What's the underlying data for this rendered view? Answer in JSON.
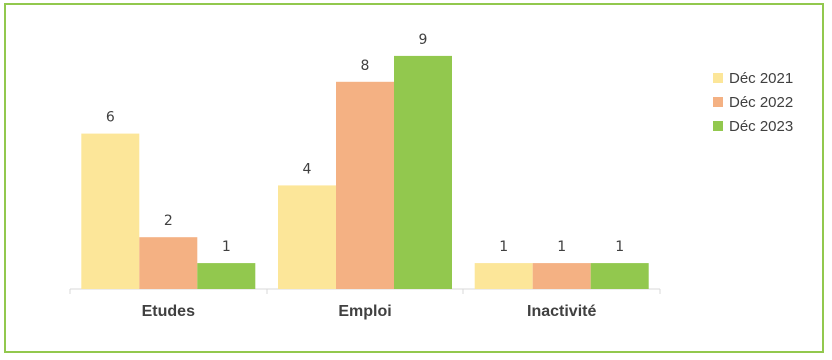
{
  "chart_data": {
    "type": "bar",
    "title": "",
    "xlabel": "",
    "ylabel": "",
    "categories": [
      "Etudes",
      "Emploi",
      "Inactivité"
    ],
    "series": [
      {
        "name": "Déc 2021",
        "color": "#fce699",
        "values": [
          6,
          4,
          1
        ]
      },
      {
        "name": "Déc 2022",
        "color": "#f4b183",
        "values": [
          2,
          8,
          1
        ]
      },
      {
        "name": "Déc 2023",
        "color": "#92c84e",
        "values": [
          1,
          9,
          1
        ]
      }
    ],
    "ylim": [
      0,
      10
    ],
    "grid": false,
    "legend_position": "right",
    "data_labels": true
  },
  "frame_color": "#92c84e"
}
